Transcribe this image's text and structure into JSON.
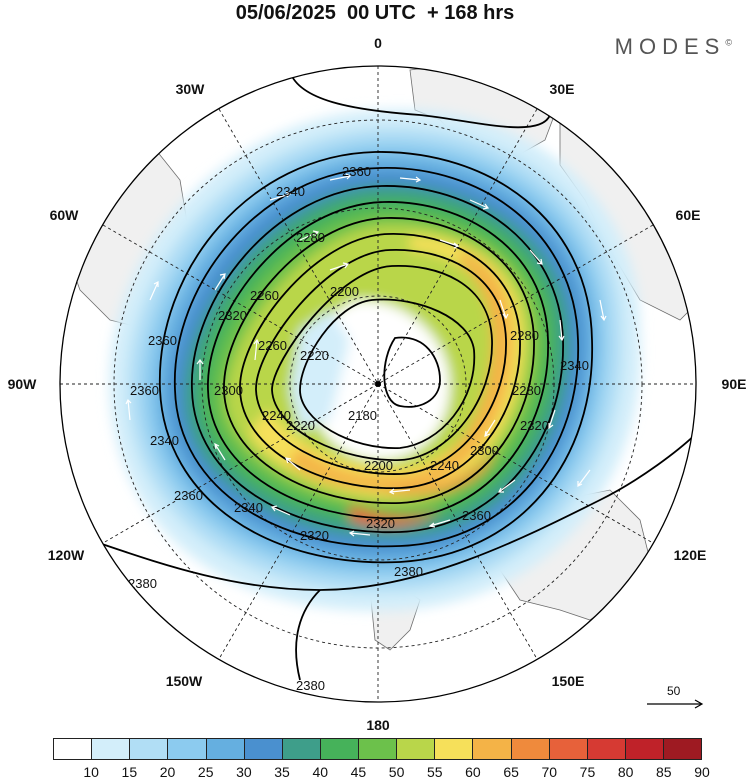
{
  "title": "05/06/2025  00 UTC  + 168 hrs",
  "brand": "MODES",
  "brand_mark": "©",
  "longitude_labels": {
    "n0": "0",
    "n30e": "30E",
    "n60e": "60E",
    "n90e": "90E",
    "n120e": "120E",
    "n150e": "150E",
    "n180": "180",
    "n150w": "150W",
    "n120w": "120W",
    "n90w": "90W",
    "n60w": "60W",
    "n30w": "30W"
  },
  "contour_labels": [
    "2180",
    "2200",
    "2200",
    "2220",
    "2220",
    "2240",
    "2240",
    "2260",
    "2260",
    "2280",
    "2280",
    "2280",
    "2300",
    "2300",
    "2320",
    "2320",
    "2320",
    "2340",
    "2340",
    "2340",
    "2360",
    "2360",
    "2360",
    "2360",
    "2380",
    "2380",
    "2380",
    "2360",
    "2340",
    "2320"
  ],
  "colorbar": {
    "labels": [
      "10",
      "15",
      "20",
      "25",
      "30",
      "35",
      "40",
      "45",
      "50",
      "55",
      "60",
      "65",
      "70",
      "75",
      "80",
      "85",
      "90"
    ],
    "colors": [
      "#ffffff",
      "#d3eefa",
      "#b1def5",
      "#8ccbef",
      "#65afe0",
      "#4a90cf",
      "#3e9e8a",
      "#46b25a",
      "#6cc14b",
      "#b9d64a",
      "#f6e05a",
      "#f4b347",
      "#ef8a3c",
      "#e7613a",
      "#d63a33",
      "#bf2229",
      "#9e1a22"
    ]
  },
  "reference_vector": {
    "label": "50"
  }
}
